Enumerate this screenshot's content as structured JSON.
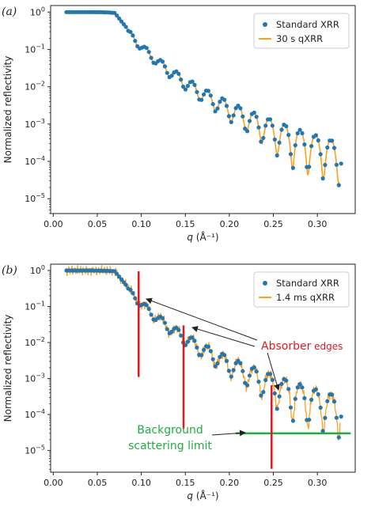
{
  "chart_data": [
    {
      "panel_label": "(a)",
      "type": "scatter",
      "xlabel": "q (Å⁻¹)",
      "xlabel_sym": "q",
      "xlabel_unit": "(Å⁻¹)",
      "ylabel": "Normalized reflectivity",
      "xlim": [
        -0.003,
        0.343
      ],
      "ylim": [
        4e-06,
        1.5
      ],
      "yscale": "log",
      "xticks": [
        0.0,
        0.05,
        0.1,
        0.15,
        0.2,
        0.25,
        0.3
      ],
      "xtick_labels": [
        "0.00",
        "0.05",
        "0.10",
        "0.15",
        "0.20",
        "0.25",
        "0.30"
      ],
      "yticks": [
        1,
        0.1,
        0.01,
        0.001,
        0.0001,
        1e-05
      ],
      "ytick_labels": [
        {
          "b": "10",
          "e": "0"
        },
        {
          "b": "10",
          "e": "−1"
        },
        {
          "b": "10",
          "e": "−2"
        },
        {
          "b": "10",
          "e": "−3"
        },
        {
          "b": "10",
          "e": "−4"
        },
        {
          "b": "10",
          "e": "−5"
        }
      ],
      "legend_position": "top-right",
      "series": [
        {
          "name": "Standard XRR",
          "style": "markers",
          "color": "#1f77b4",
          "model": "standard"
        },
        {
          "name": "30 s qXRR",
          "style": "line",
          "color": "#ff9f1a",
          "model": "smooth"
        }
      ]
    },
    {
      "panel_label": "(b)",
      "type": "scatter",
      "xlabel": "q (Å⁻¹)",
      "xlabel_sym": "q",
      "xlabel_unit": "(Å⁻¹)",
      "ylabel": "Normalized reflectivity",
      "xlim": [
        -0.003,
        0.343
      ],
      "ylim": [
        2.5e-06,
        1.5
      ],
      "yscale": "log",
      "xticks": [
        0.0,
        0.05,
        0.1,
        0.15,
        0.2,
        0.25,
        0.3
      ],
      "xtick_labels": [
        "0.00",
        "0.05",
        "0.10",
        "0.15",
        "0.20",
        "0.25",
        "0.30"
      ],
      "yticks": [
        1,
        0.1,
        0.01,
        0.001,
        0.0001,
        1e-05
      ],
      "ytick_labels": [
        {
          "b": "10",
          "e": "0"
        },
        {
          "b": "10",
          "e": "−1"
        },
        {
          "b": "10",
          "e": "−2"
        },
        {
          "b": "10",
          "e": "−3"
        },
        {
          "b": "10",
          "e": "−4"
        },
        {
          "b": "10",
          "e": "−5"
        }
      ],
      "legend_position": "top-right",
      "series": [
        {
          "name": "Standard XRR",
          "style": "markers",
          "color": "#1f77b4",
          "model": "standard"
        },
        {
          "name": "1.4 ms qXRR",
          "style": "line",
          "color": "#ff9f1a",
          "model": "noisy"
        }
      ],
      "absorber_edges": [
        {
          "q": 0.097,
          "y_top": 0.95,
          "y_bottom": 0.0011
        },
        {
          "q": 0.148,
          "y_top": 0.03,
          "y_bottom": 4e-05
        },
        {
          "q": 0.248,
          "y_top": 0.00065,
          "y_bottom": 3.1e-06
        }
      ],
      "background_limit": {
        "q_start": 0.207,
        "q_end": 0.338,
        "y": 3e-05
      },
      "annotations": {
        "absorber_word": "Absorber",
        "absorber_suffix": "edges",
        "background_line1": "Background",
        "background_line2": "scattering limit"
      },
      "colors": {
        "absorber": "#e0191f",
        "background": "#1fae3f"
      }
    }
  ]
}
